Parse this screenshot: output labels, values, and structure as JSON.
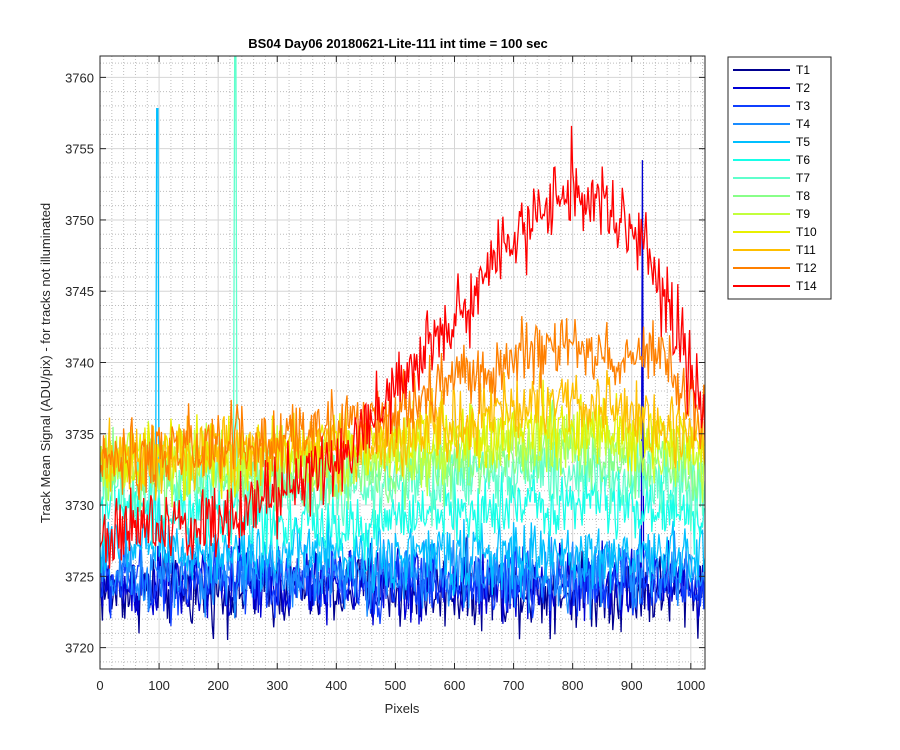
{
  "chart_data": {
    "type": "line",
    "title": "BS04 Day06 20180621-Lite-111 int time = 100 sec",
    "xlabel": "Pixels",
    "ylabel": "Track Mean Signal (ADU/pix) - for tracks not illuminated",
    "xlim": [
      0,
      1024
    ],
    "ylim": [
      3718.5,
      3761.5
    ],
    "xticks": [
      0,
      100,
      200,
      300,
      400,
      500,
      600,
      700,
      800,
      900,
      1000
    ],
    "yticks": [
      3720,
      3725,
      3730,
      3735,
      3740,
      3745,
      3750,
      3755,
      3760
    ],
    "grid": true,
    "minor_grid": true,
    "legend_position": "outside-top-right",
    "series": [
      {
        "name": "T1",
        "color": "#00008f",
        "baseline": [
          [
            0,
            3724
          ],
          [
            1024,
            3724
          ]
        ],
        "noise": 1.6,
        "spikes": []
      },
      {
        "name": "T2",
        "color": "#0000d4",
        "baseline": [
          [
            0,
            3724.4
          ],
          [
            1024,
            3724.4
          ]
        ],
        "noise": 1.6,
        "spikes": [
          [
            918,
            3754.2
          ]
        ]
      },
      {
        "name": "T3",
        "color": "#0f3fff",
        "baseline": [
          [
            0,
            3724.6
          ],
          [
            1024,
            3724.6
          ]
        ],
        "noise": 1.5,
        "spikes": []
      },
      {
        "name": "T4",
        "color": "#1a8cff",
        "baseline": [
          [
            0,
            3725
          ],
          [
            1024,
            3725.3
          ]
        ],
        "noise": 1.5,
        "spikes": []
      },
      {
        "name": "T5",
        "color": "#00bfff",
        "baseline": [
          [
            0,
            3727
          ],
          [
            500,
            3726.5
          ],
          [
            1024,
            3726.5
          ]
        ],
        "noise": 1.4,
        "spikes": [
          [
            97,
            3757.8
          ]
        ]
      },
      {
        "name": "T6",
        "color": "#17ffe8",
        "baseline": [
          [
            0,
            3730
          ],
          [
            400,
            3728.5
          ],
          [
            800,
            3730.5
          ],
          [
            1024,
            3729.5
          ]
        ],
        "noise": 1.4,
        "spikes": []
      },
      {
        "name": "T7",
        "color": "#5fffcc",
        "baseline": [
          [
            0,
            3732
          ],
          [
            400,
            3731
          ],
          [
            800,
            3732.5
          ],
          [
            1024,
            3731
          ]
        ],
        "noise": 1.5,
        "spikes": [
          [
            229,
            3762
          ]
        ]
      },
      {
        "name": "T8",
        "color": "#88ff88",
        "baseline": [
          [
            0,
            3732.5
          ],
          [
            400,
            3732
          ],
          [
            800,
            3734
          ],
          [
            1024,
            3732
          ]
        ],
        "noise": 1.5,
        "spikes": []
      },
      {
        "name": "T9",
        "color": "#c2ff3d",
        "baseline": [
          [
            0,
            3733
          ],
          [
            400,
            3733
          ],
          [
            800,
            3735
          ],
          [
            1024,
            3733
          ]
        ],
        "noise": 1.5,
        "spikes": []
      },
      {
        "name": "T10",
        "color": "#e8f000",
        "baseline": [
          [
            0,
            3733
          ],
          [
            400,
            3734
          ],
          [
            800,
            3736
          ],
          [
            1024,
            3734
          ]
        ],
        "noise": 1.5,
        "spikes": []
      },
      {
        "name": "T11",
        "color": "#ffbf00",
        "baseline": [
          [
            0,
            3733
          ],
          [
            400,
            3734
          ],
          [
            800,
            3737.5
          ],
          [
            1024,
            3735
          ]
        ],
        "noise": 1.5,
        "spikes": []
      },
      {
        "name": "T12",
        "color": "#ff8000",
        "baseline": [
          [
            0,
            3733
          ],
          [
            300,
            3734.5
          ],
          [
            500,
            3736.5
          ],
          [
            700,
            3740.5
          ],
          [
            800,
            3741
          ],
          [
            950,
            3740
          ],
          [
            1024,
            3736
          ]
        ],
        "noise": 1.6,
        "spikes": []
      },
      {
        "name": "T14",
        "color": "#ff0000",
        "baseline": [
          [
            0,
            3728
          ],
          [
            200,
            3729
          ],
          [
            400,
            3733
          ],
          [
            500,
            3738
          ],
          [
            600,
            3743
          ],
          [
            700,
            3749
          ],
          [
            780,
            3751.5
          ],
          [
            850,
            3751
          ],
          [
            920,
            3748
          ],
          [
            980,
            3742
          ],
          [
            1024,
            3736
          ]
        ],
        "noise": 1.7,
        "spikes": [
          [
            798,
            3756.6
          ]
        ]
      }
    ]
  }
}
